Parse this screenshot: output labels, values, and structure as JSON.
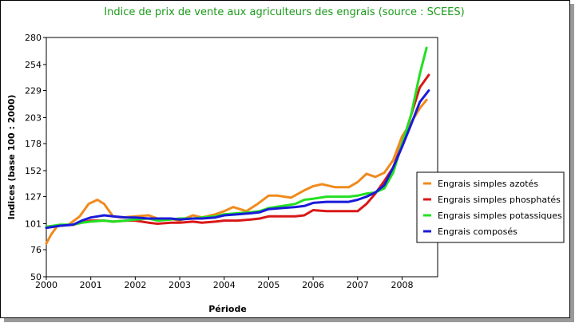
{
  "chart_data": {
    "type": "line",
    "title": "Indice de prix de vente aux agriculteurs des engrais (source : SCEES)",
    "xlabel": "Période",
    "ylabel": "Indices (base 100 : 2000)",
    "xlim": [
      2000,
      2008.8
    ],
    "ylim": [
      50,
      280
    ],
    "x_ticks": [
      "2000",
      "2001",
      "2002",
      "2003",
      "2004",
      "2005",
      "2006",
      "2007",
      "2008"
    ],
    "y_ticks": [
      "280",
      "254",
      "229",
      "203",
      "178",
      "152",
      "127",
      "101",
      "76",
      "50"
    ],
    "legend_position": "right",
    "series": [
      {
        "name": "Engrais simples azotés",
        "color": "#f08a1c",
        "points": [
          [
            2000.0,
            82
          ],
          [
            2000.1,
            90
          ],
          [
            2000.25,
            99
          ],
          [
            2000.5,
            100
          ],
          [
            2000.75,
            108
          ],
          [
            2000.95,
            120
          ],
          [
            2001.15,
            124
          ],
          [
            2001.3,
            120
          ],
          [
            2001.5,
            108
          ],
          [
            2001.7,
            107
          ],
          [
            2002.0,
            108
          ],
          [
            2002.3,
            109
          ],
          [
            2002.5,
            106
          ],
          [
            2002.75,
            106
          ],
          [
            2003.0,
            104
          ],
          [
            2003.3,
            109
          ],
          [
            2003.5,
            107
          ],
          [
            2003.8,
            110
          ],
          [
            2004.0,
            113
          ],
          [
            2004.2,
            117
          ],
          [
            2004.5,
            113
          ],
          [
            2004.75,
            120
          ],
          [
            2005.0,
            128
          ],
          [
            2005.2,
            128
          ],
          [
            2005.5,
            126
          ],
          [
            2005.8,
            133
          ],
          [
            2006.0,
            137
          ],
          [
            2006.2,
            139
          ],
          [
            2006.5,
            136
          ],
          [
            2006.8,
            136
          ],
          [
            2007.0,
            141
          ],
          [
            2007.2,
            149
          ],
          [
            2007.4,
            146
          ],
          [
            2007.6,
            150
          ],
          [
            2007.8,
            162
          ],
          [
            2008.0,
            185
          ],
          [
            2008.2,
            198
          ],
          [
            2008.4,
            212
          ],
          [
            2008.55,
            220
          ]
        ]
      },
      {
        "name": "Engrais simples phosphatés",
        "color": "#d81818",
        "points": [
          [
            2000.0,
            97
          ],
          [
            2000.3,
            99
          ],
          [
            2000.6,
            100
          ],
          [
            2000.8,
            102
          ],
          [
            2001.0,
            104
          ],
          [
            2001.3,
            104
          ],
          [
            2001.5,
            103
          ],
          [
            2001.8,
            104
          ],
          [
            2002.0,
            104
          ],
          [
            2002.3,
            102
          ],
          [
            2002.5,
            101
          ],
          [
            2002.8,
            102
          ],
          [
            2003.0,
            102
          ],
          [
            2003.3,
            103
          ],
          [
            2003.5,
            102
          ],
          [
            2003.8,
            103
          ],
          [
            2004.0,
            104
          ],
          [
            2004.3,
            104
          ],
          [
            2004.6,
            105
          ],
          [
            2004.8,
            106
          ],
          [
            2005.0,
            108
          ],
          [
            2005.3,
            108
          ],
          [
            2005.6,
            108
          ],
          [
            2005.8,
            109
          ],
          [
            2006.0,
            114
          ],
          [
            2006.3,
            113
          ],
          [
            2006.6,
            113
          ],
          [
            2006.8,
            113
          ],
          [
            2007.0,
            113
          ],
          [
            2007.2,
            120
          ],
          [
            2007.4,
            130
          ],
          [
            2007.6,
            142
          ],
          [
            2007.8,
            155
          ],
          [
            2008.0,
            178
          ],
          [
            2008.2,
            205
          ],
          [
            2008.4,
            232
          ],
          [
            2008.6,
            244
          ]
        ]
      },
      {
        "name": "Engrais simples potassiques",
        "color": "#22e022",
        "points": [
          [
            2000.0,
            98
          ],
          [
            2000.3,
            100
          ],
          [
            2000.6,
            100
          ],
          [
            2000.8,
            102
          ],
          [
            2001.0,
            103
          ],
          [
            2001.3,
            104
          ],
          [
            2001.5,
            103
          ],
          [
            2001.8,
            104
          ],
          [
            2002.0,
            105
          ],
          [
            2002.3,
            106
          ],
          [
            2002.5,
            104
          ],
          [
            2002.8,
            105
          ],
          [
            2003.0,
            106
          ],
          [
            2003.3,
            106
          ],
          [
            2003.5,
            107
          ],
          [
            2003.8,
            108
          ],
          [
            2004.0,
            110
          ],
          [
            2004.3,
            111
          ],
          [
            2004.6,
            112
          ],
          [
            2004.8,
            113
          ],
          [
            2005.0,
            116
          ],
          [
            2005.3,
            118
          ],
          [
            2005.6,
            120
          ],
          [
            2005.8,
            124
          ],
          [
            2006.0,
            125
          ],
          [
            2006.3,
            127
          ],
          [
            2006.6,
            127
          ],
          [
            2006.8,
            127
          ],
          [
            2007.0,
            128
          ],
          [
            2007.2,
            130
          ],
          [
            2007.4,
            131
          ],
          [
            2007.6,
            135
          ],
          [
            2007.8,
            150
          ],
          [
            2008.0,
            178
          ],
          [
            2008.2,
            205
          ],
          [
            2008.4,
            245
          ],
          [
            2008.55,
            270
          ]
        ]
      },
      {
        "name": "Engrais composés",
        "color": "#1a1ad8",
        "points": [
          [
            2000.0,
            97
          ],
          [
            2000.3,
            99
          ],
          [
            2000.6,
            100
          ],
          [
            2000.8,
            104
          ],
          [
            2001.0,
            107
          ],
          [
            2001.3,
            109
          ],
          [
            2001.5,
            108
          ],
          [
            2001.8,
            107
          ],
          [
            2002.0,
            107
          ],
          [
            2002.3,
            106
          ],
          [
            2002.5,
            106
          ],
          [
            2002.8,
            106
          ],
          [
            2003.0,
            105
          ],
          [
            2003.3,
            106
          ],
          [
            2003.5,
            106
          ],
          [
            2003.8,
            107
          ],
          [
            2004.0,
            109
          ],
          [
            2004.3,
            110
          ],
          [
            2004.6,
            111
          ],
          [
            2004.8,
            112
          ],
          [
            2005.0,
            115
          ],
          [
            2005.3,
            116
          ],
          [
            2005.6,
            117
          ],
          [
            2005.8,
            118
          ],
          [
            2006.0,
            121
          ],
          [
            2006.3,
            122
          ],
          [
            2006.6,
            122
          ],
          [
            2006.8,
            122
          ],
          [
            2007.0,
            124
          ],
          [
            2007.2,
            127
          ],
          [
            2007.4,
            131
          ],
          [
            2007.6,
            138
          ],
          [
            2007.8,
            155
          ],
          [
            2008.0,
            175
          ],
          [
            2008.2,
            196
          ],
          [
            2008.4,
            218
          ],
          [
            2008.6,
            229
          ]
        ]
      }
    ]
  }
}
